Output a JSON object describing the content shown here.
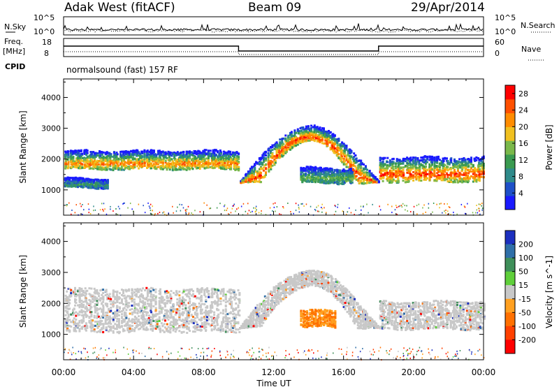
{
  "header": {
    "station": "Adak West (fitACF)",
    "beam": "Beam 09",
    "date": "29/Apr/2014"
  },
  "strips": {
    "nsky_label": "N.Sky",
    "nsearch_label": "N.Search",
    "nsky_ticks": [
      "10^5",
      "10^0"
    ],
    "nsearch_ticks": [
      "10^5",
      "10^0"
    ],
    "freq_label": "Freq.",
    "freq_unit": "[MHz]",
    "freq_ticks": [
      "18",
      "8"
    ],
    "nave_label": "Nave",
    "nave_ticks": [
      "60",
      "0"
    ],
    "cpid_label": "CPID",
    "cpid_text": "normalsound (fast) 157 RF"
  },
  "chart_data": [
    {
      "type": "heatmap",
      "panel": "power",
      "ylabel": "Slant Range [km]",
      "xlabel": "",
      "x_ticks": [
        "00:00",
        "04:00",
        "08:00",
        "12:00",
        "16:00",
        "20:00",
        "00:00"
      ],
      "y_ticks": [
        1000,
        2000,
        3000,
        4000
      ],
      "xlim": [
        0,
        24
      ],
      "ylim": [
        180,
        4600
      ],
      "colorbar": {
        "label": "Power [dB]",
        "ticks": [
          4,
          8,
          12,
          16,
          20,
          24,
          28
        ],
        "range": [
          0,
          30
        ],
        "colors": [
          "#1a1aff",
          "#1e50c8",
          "#2e8a8a",
          "#3a9a50",
          "#7ab84a",
          "#f0c020",
          "#ff8c00",
          "#ff5000",
          "#ff0000"
        ]
      },
      "bands": [
        {
          "name": "nightside band",
          "x": [
            0,
            10
          ],
          "range_km": [
            1700,
            2300
          ],
          "peak_km": 1950,
          "peak_db": 24
        },
        {
          "name": "lower nightside band",
          "x": [
            0,
            2.5
          ],
          "range_km": [
            1100,
            1400
          ],
          "peak_db": 10
        },
        {
          "name": "sunrise arc",
          "x": [
            10,
            18
          ],
          "range_km": [
            1250,
            3100
          ],
          "peak_db": 28
        },
        {
          "name": "mid-day patch",
          "x": [
            13.5,
            16.5
          ],
          "range_km": [
            1250,
            1750
          ],
          "peak_db": 14
        },
        {
          "name": "evening band",
          "x": [
            18,
            24
          ],
          "range_km": [
            1300,
            2100
          ],
          "peak_km": 1700,
          "peak_db": 28
        }
      ]
    },
    {
      "type": "heatmap",
      "panel": "velocity",
      "ylabel": "Slant Range [km]",
      "xlabel": "Time UT",
      "x_ticks": [
        "00:00",
        "04:00",
        "08:00",
        "12:00",
        "16:00",
        "20:00",
        "00:00"
      ],
      "y_ticks": [
        1000,
        2000,
        3000,
        4000
      ],
      "xlim": [
        0,
        24
      ],
      "ylim": [
        180,
        4600
      ],
      "colorbar": {
        "label": "Velocity [m s^-1]",
        "ticks": [
          200,
          100,
          50,
          15,
          -15,
          -50,
          -100,
          -200
        ],
        "colors": [
          "#1c2fbf",
          "#2f6fa8",
          "#3f8f5a",
          "#5fcf3a",
          "#c8c8c8",
          "#ffa020",
          "#ff7000",
          "#ff4000",
          "#ff0000"
        ]
      },
      "bands": [
        {
          "name": "ground scatter nightside",
          "x": [
            0,
            10
          ],
          "range_km": [
            1100,
            2500
          ],
          "velocity": 0
        },
        {
          "name": "ground scatter arc",
          "x": [
            10,
            18
          ],
          "range_km": [
            1250,
            3100
          ],
          "velocity": 0
        },
        {
          "name": "mid-day flow",
          "x": [
            13.5,
            15.5
          ],
          "range_km": [
            1250,
            1800
          ],
          "velocity": -60
        },
        {
          "name": "ground scatter evening",
          "x": [
            18,
            24
          ],
          "range_km": [
            1200,
            2100
          ],
          "velocity": 0
        }
      ]
    }
  ]
}
